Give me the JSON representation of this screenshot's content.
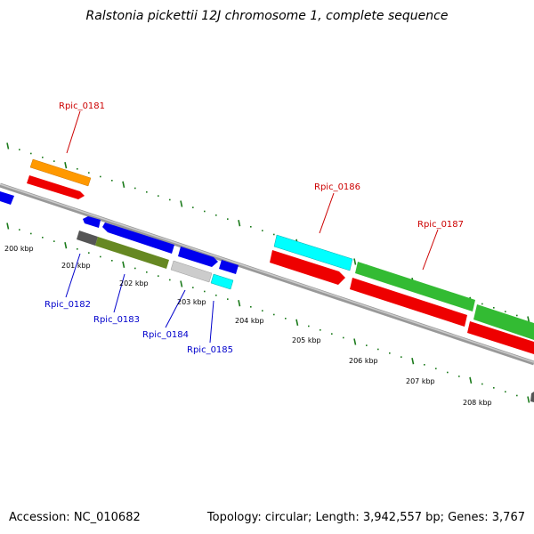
{
  "title": "Ralstonia pickettii 12J chromosome 1, complete sequence",
  "footer": {
    "accession": "Accession: NC_010682",
    "topology": "Topology: circular; Length: 3,942,557 bp; Genes: 3,767"
  },
  "kbp_labels": [
    "200 kbp",
    "201 kbp",
    "202 kbp",
    "203 kbp",
    "204 kbp",
    "205 kbp",
    "206 kbp",
    "207 kbp",
    "208 kbp"
  ],
  "gene_labels": {
    "rpic_0181": "Rpic_0181",
    "rpic_0182": "Rpic_0182",
    "rpic_0183": "Rpic_0183",
    "rpic_0184": "Rpic_0184",
    "rpic_0185": "Rpic_0185",
    "rpic_0186": "Rpic_0186",
    "rpic_0187": "Rpic_0187"
  },
  "colors": {
    "red_label": "#cc0000",
    "blue_label": "#0000cc",
    "tick": "#1a7a1a",
    "backbone": "#8a8a8a",
    "cds_red": "#ee0000",
    "cds_blue": "#0000ee",
    "cds_green": "#33bb33",
    "cds_cyan": "#00ffff",
    "cds_orange": "#ff9900",
    "cds_olive": "#668822",
    "cds_gray": "#555555",
    "cds_lightgray": "#cccccc"
  }
}
